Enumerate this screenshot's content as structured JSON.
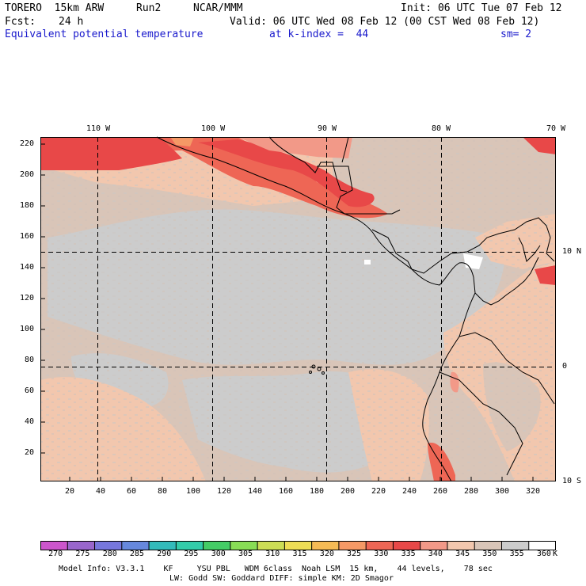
{
  "header": {
    "model": "TORERO  15km ARW",
    "run": "Run2",
    "org": "NCAR/MMM",
    "init": "Init: 06 UTC Tue 07 Feb 12",
    "fcst_label": "Fcst:",
    "fcst_value": "24 h",
    "valid": "Valid: 06 UTC Wed 08 Feb 12 (00 CST Wed 08 Feb 12)",
    "field": "Equivalent potential temperature",
    "level": "at k-index =  44",
    "smoothing": "sm= 2"
  },
  "map": {
    "lon_labels": [
      "110 W",
      "100 W",
      "90 W",
      "80 W",
      "70 W"
    ],
    "lat_labels": [
      "10 N",
      "0",
      "10 S"
    ],
    "y_ticks": [
      "220",
      "200",
      "180",
      "160",
      "140",
      "120",
      "100",
      "80",
      "60",
      "40",
      "20"
    ],
    "x_ticks": [
      "20",
      "40",
      "60",
      "80",
      "100",
      "120",
      "140",
      "160",
      "180",
      "200",
      "220",
      "240",
      "260",
      "280",
      "300",
      "320"
    ]
  },
  "colorbar": {
    "unit": "K",
    "labels": [
      "270",
      "275",
      "280",
      "285",
      "290",
      "295",
      "300",
      "305",
      "310",
      "315",
      "320",
      "325",
      "330",
      "335",
      "340",
      "345",
      "350",
      "355",
      "360"
    ],
    "colors": [
      "#cc55cc",
      "#9966cc",
      "#7777dd",
      "#6688dd",
      "#33bbbb",
      "#33ccaa",
      "#44cc66",
      "#88dd55",
      "#ccdd55",
      "#eedd55",
      "#f5bb55",
      "#f59966",
      "#ee6655",
      "#e84848",
      "#f29988",
      "#f2c7ae",
      "#d9c5b8",
      "#cccccc",
      "#ffffff"
    ]
  },
  "footer": {
    "line1": "Model Info: V3.3.1    KF     YSU PBL   WDM 6class  Noah LSM  15 km,    44 levels,    78 sec",
    "line2": "LW: Godd SW: Goddard DIFF: simple KM: 2D Smagor"
  }
}
